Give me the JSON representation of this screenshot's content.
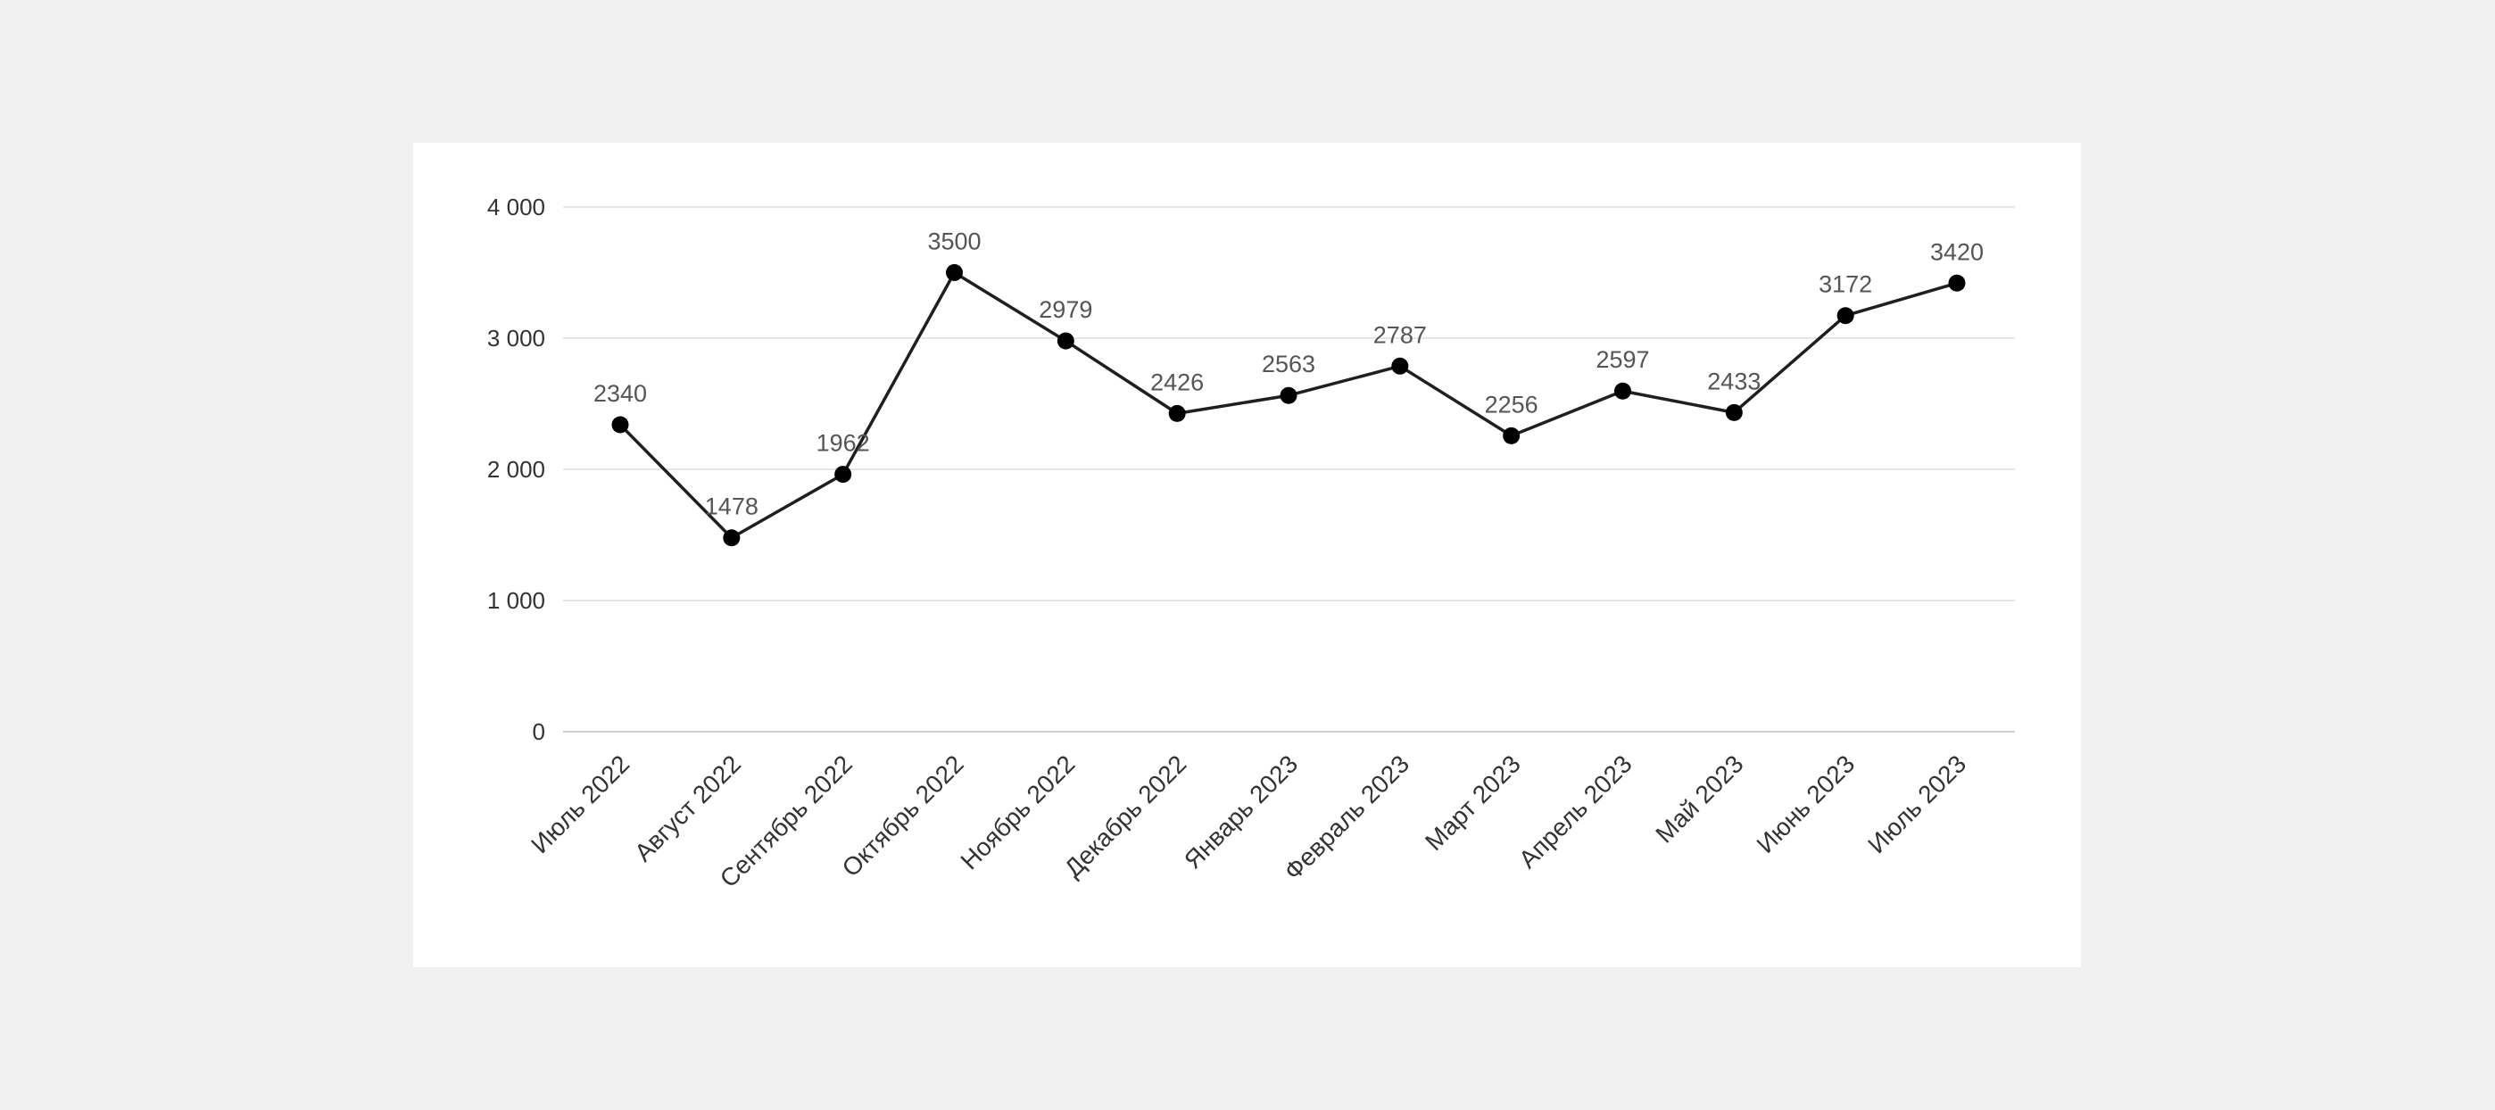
{
  "chart_data": {
    "type": "line",
    "title": "",
    "xlabel": "",
    "ylabel": "",
    "categories": [
      "Июль 2022",
      "Август 2022",
      "Сентябрь 2022",
      "Октябрь 2022",
      "Ноябрь 2022",
      "Декабрь 2022",
      "Январь 2023",
      "Февраль 2023",
      "Март 2023",
      "Апрель 2023",
      "Май 2023",
      "Июнь 2023",
      "Июль 2023"
    ],
    "series": [
      {
        "name": "",
        "values": [
          2340,
          1478,
          1962,
          3500,
          2979,
          2426,
          2563,
          2787,
          2256,
          2597,
          2433,
          3172,
          3420
        ],
        "labels": [
          "2340",
          "1478",
          "1962",
          "3500",
          "2979",
          "2426",
          "2563",
          "2787",
          "2256",
          "2597",
          "2433",
          "3172",
          "3420"
        ]
      }
    ],
    "ylim": [
      0,
      4000
    ],
    "yticks": [
      0,
      1000,
      2000,
      3000,
      4000
    ],
    "ytick_labels": [
      "0",
      "1 000",
      "2 000",
      "3 000",
      "4 000"
    ],
    "grid": true,
    "legend": "none",
    "colors": {
      "line": "#1f1f1f",
      "marker": "#000000",
      "grid": "#e6e6e6",
      "background": "#ffffff",
      "page": "#f1f1f1"
    }
  }
}
